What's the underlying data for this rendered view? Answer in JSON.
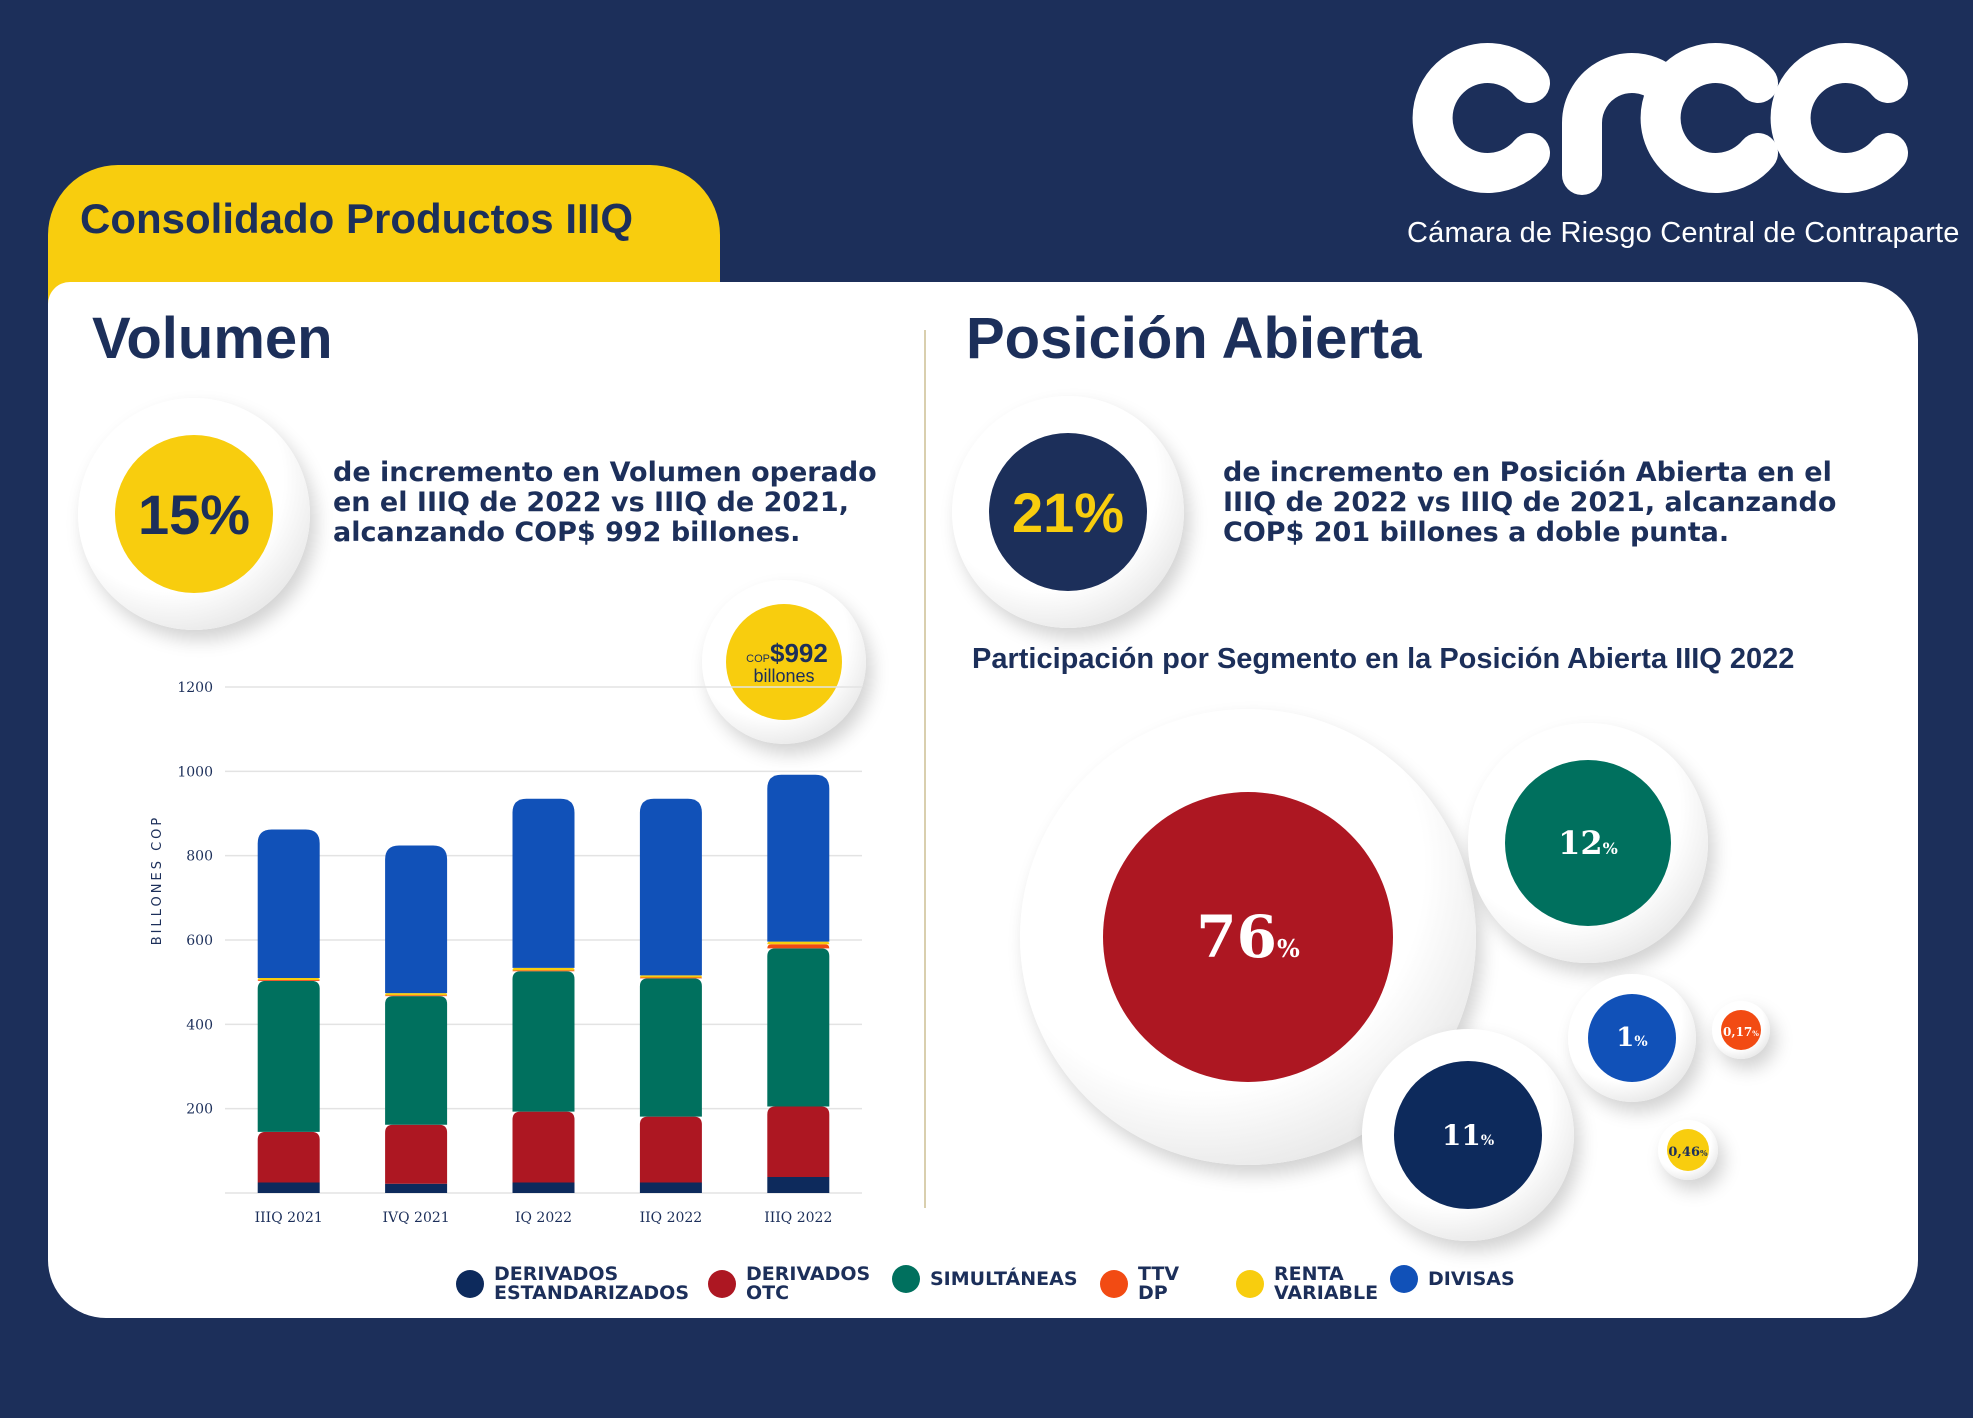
{
  "brand": {
    "logo_text": "crcc",
    "subtitle": "Cámara de Riesgo Central de Contraparte"
  },
  "header": {
    "tab_title": "Consolidado Productos IIIQ"
  },
  "volumen": {
    "title": "Volumen",
    "kpi": "15%",
    "description_lines": [
      "de incremento en Volumen operado",
      "en el IIIQ de 2022 vs IIIQ de 2021,",
      "alcanzando COP$ 992 billones."
    ],
    "callout_prefix": "COP",
    "callout_value": "$992",
    "callout_unit": "billones"
  },
  "posicion": {
    "title": "Posición Abierta",
    "kpi": "21%",
    "description_lines": [
      "de incremento en Posición Abierta en el",
      "IIIQ de 2022 vs IIIQ de 2021, alcanzando",
      "COP$ 201 billones a doble punta."
    ],
    "pie_title": "Participación por Segmento en la Posición Abierta IIIQ 2022"
  },
  "legend": [
    {
      "label": "DERIVADOS\nESTANDARIZADOS",
      "color": "#0d2a5c"
    },
    {
      "label": "DERIVADOS\nOTC",
      "color": "#ad1722"
    },
    {
      "label": "SIMULTÁNEAS",
      "color": "#00705e"
    },
    {
      "label": "TTV DP",
      "color": "#f24b13"
    },
    {
      "label": "RENTA\nVARIABLE",
      "color": "#f8cd0e"
    },
    {
      "label": "DIVISAS",
      "color": "#1151b8"
    }
  ],
  "colors": {
    "navy": "#1c2f5a",
    "yellow": "#f8cd0e",
    "background": "#1c2f5a"
  },
  "chart_data": [
    {
      "type": "bar",
      "stacked": true,
      "title": "",
      "xlabel": "",
      "ylabel": "BILLONES COP",
      "ylim": [
        0,
        1200
      ],
      "yticks": [
        200,
        400,
        600,
        800,
        1000,
        1200
      ],
      "grid": true,
      "categories": [
        "IIIQ 2021",
        "IVQ 2021",
        "IQ 2022",
        "IIQ 2022",
        "IIIQ 2022"
      ],
      "series": [
        {
          "name": "DERIVADOS ESTANDARIZADOS",
          "color": "#0d2a5c",
          "values": [
            25,
            22,
            25,
            25,
            38
          ]
        },
        {
          "name": "DERIVADOS OTC",
          "color": "#ad1722",
          "values": [
            120,
            140,
            168,
            156,
            167
          ]
        },
        {
          "name": "SIMULTÁNEAS",
          "color": "#00705e",
          "values": [
            358,
            305,
            333,
            328,
            375
          ]
        },
        {
          "name": "TTV DP",
          "color": "#f24b13",
          "values": [
            2,
            2,
            2,
            2,
            10
          ]
        },
        {
          "name": "RENTA VARIABLE",
          "color": "#f8cd0e",
          "values": [
            5,
            5,
            6,
            5,
            6
          ]
        },
        {
          "name": "DIVISAS",
          "color": "#1151b8",
          "values": [
            352,
            350,
            401,
            419,
            396
          ]
        }
      ],
      "totals": [
        862,
        824,
        935,
        935,
        992
      ]
    },
    {
      "type": "pie",
      "title": "Participación por Segmento en la Posición Abierta IIIQ 2022",
      "style": "bubbles",
      "slices": [
        {
          "name": "DERIVADOS OTC",
          "value": 76,
          "label": "76",
          "color": "#ad1722"
        },
        {
          "name": "SIMULTÁNEAS",
          "value": 12,
          "label": "12",
          "color": "#00705e"
        },
        {
          "name": "DERIVADOS ESTANDARIZADOS",
          "value": 11,
          "label": "11",
          "color": "#0d2a5c"
        },
        {
          "name": "DIVISAS",
          "value": 1,
          "label": "1",
          "color": "#1151b8"
        },
        {
          "name": "RENTA VARIABLE",
          "value": 0.46,
          "label": "0,46",
          "color": "#f8cd0e"
        },
        {
          "name": "TTV DP",
          "value": 0.17,
          "label": "0,17",
          "color": "#f24b13"
        }
      ],
      "unit": "%"
    }
  ]
}
